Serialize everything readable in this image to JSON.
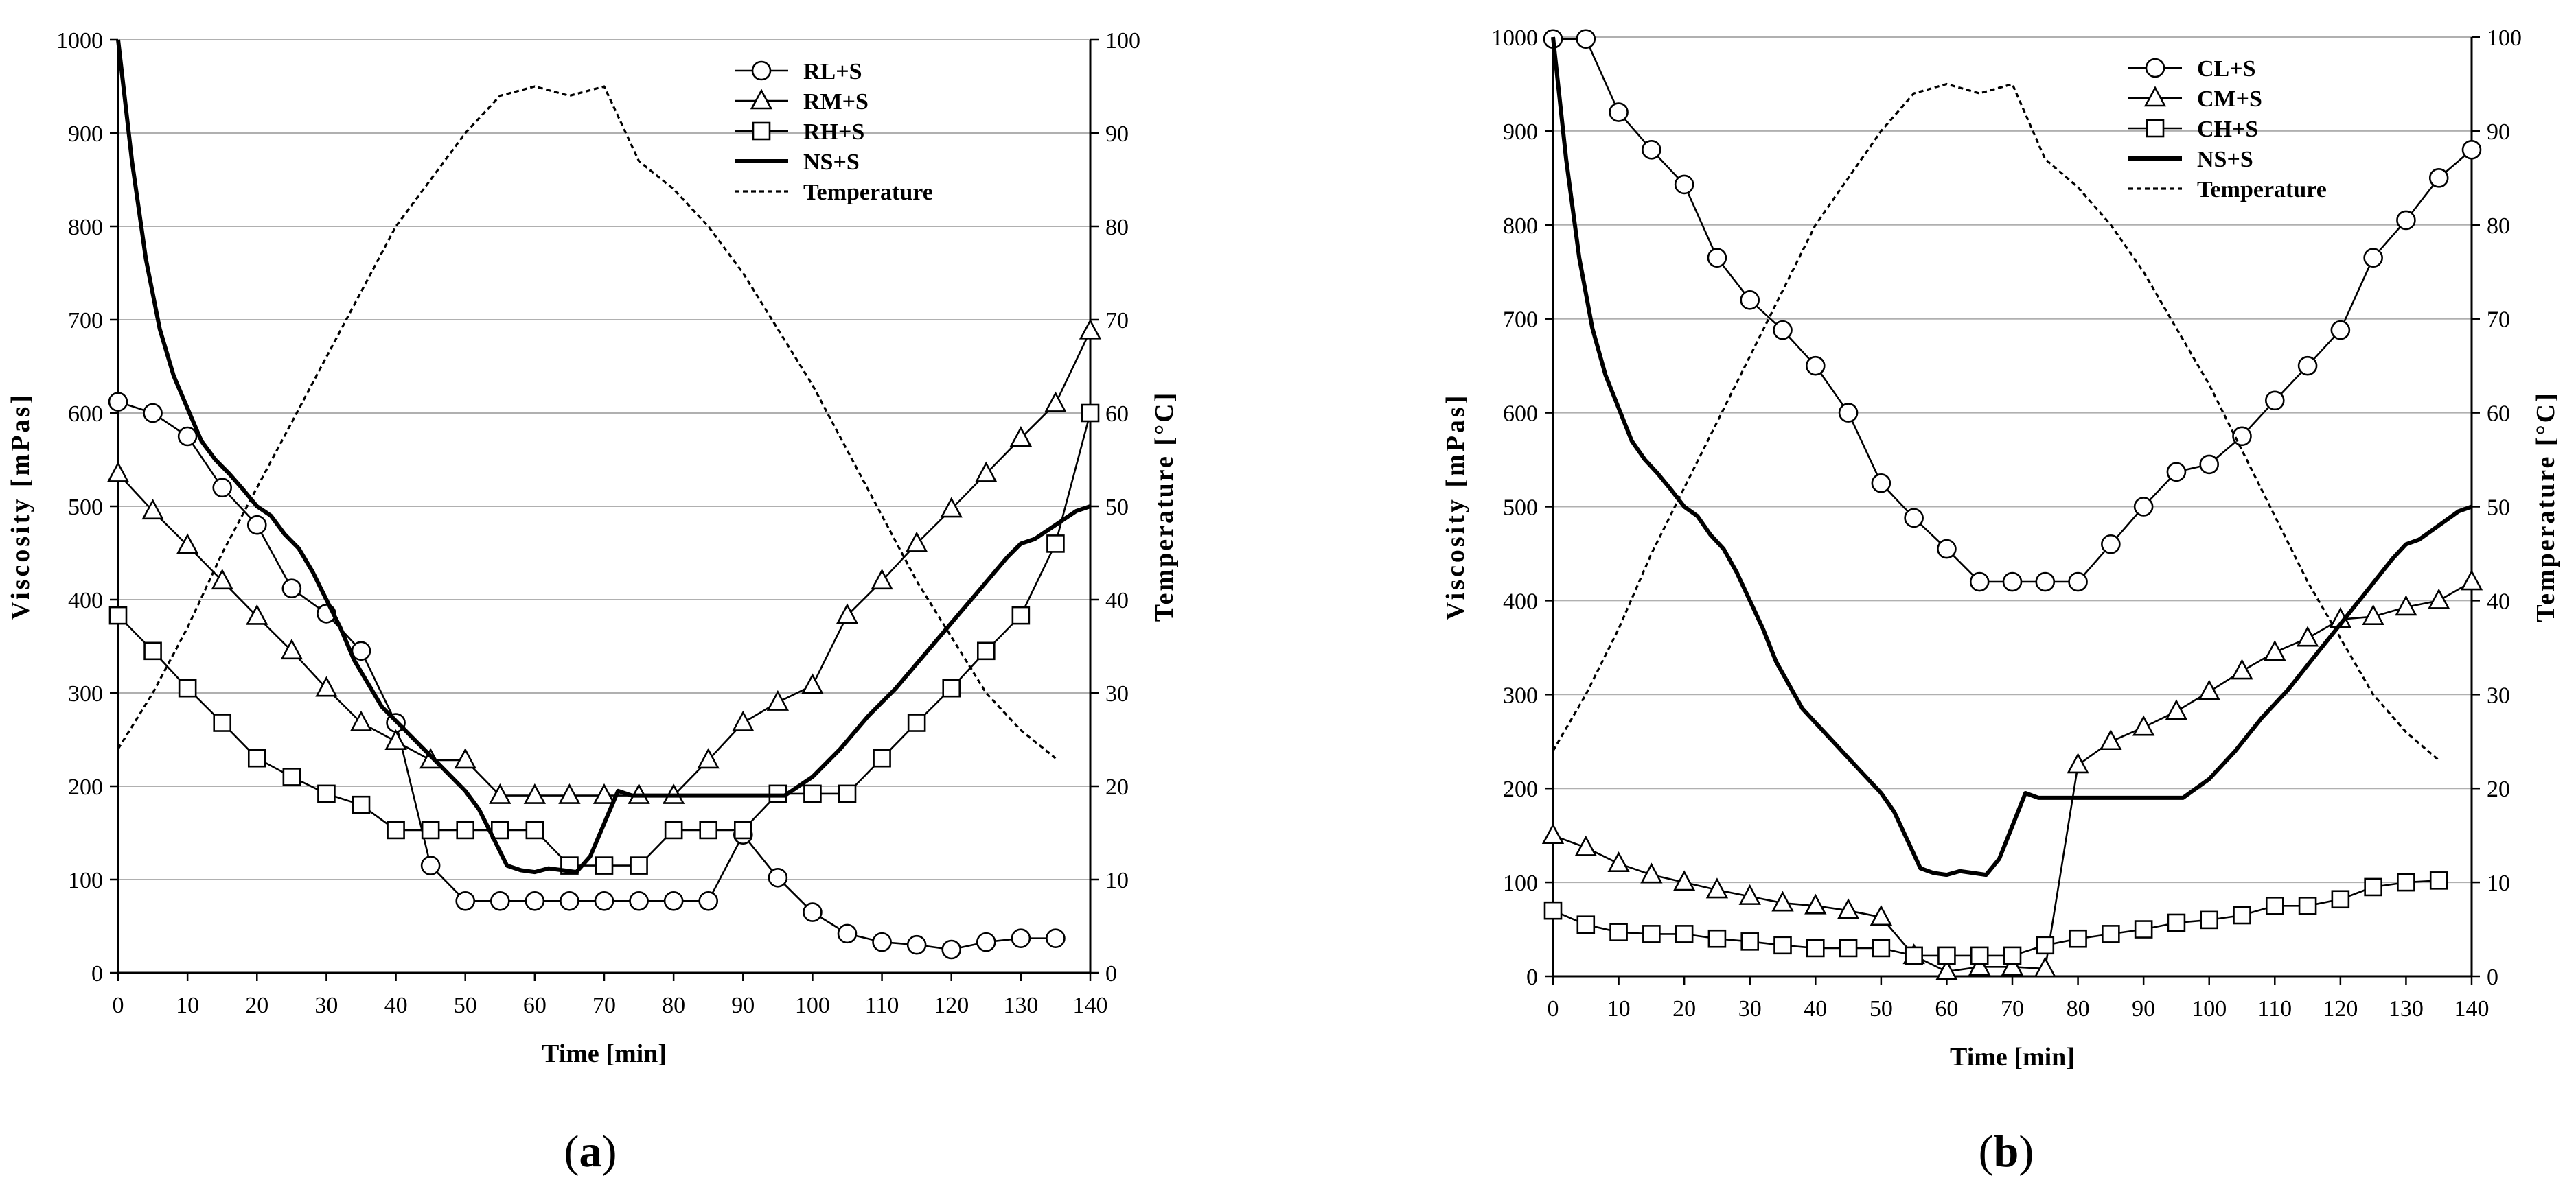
{
  "chart_data": [
    {
      "type": "line",
      "panel_label": "a",
      "xlabel": "Time [min]",
      "ylabel": "Viscosity  [mPas]",
      "y2label": "Temperature [°C]",
      "xlim": [
        0,
        140
      ],
      "ylim": [
        0,
        1000
      ],
      "y2lim": [
        0,
        100
      ],
      "x_ticks": [
        0,
        10,
        20,
        30,
        40,
        50,
        60,
        70,
        80,
        90,
        100,
        110,
        120,
        130,
        140
      ],
      "y_ticks": [
        0,
        100,
        200,
        300,
        400,
        500,
        600,
        700,
        800,
        900,
        1000
      ],
      "y2_ticks": [
        0,
        10,
        20,
        30,
        40,
        50,
        60,
        70,
        80,
        90,
        100
      ],
      "grid": true,
      "legend": "top-right",
      "series": [
        {
          "name": "RL+S",
          "marker": "circle",
          "x": [
            0,
            5,
            10,
            15,
            20,
            25,
            30,
            35,
            40,
            45,
            50,
            55,
            60,
            65,
            70,
            75,
            80,
            85,
            90,
            95,
            100,
            105,
            110,
            115,
            120,
            125,
            130,
            135
          ],
          "values": [
            612,
            600,
            575,
            520,
            480,
            412,
            385,
            345,
            268,
            115,
            77,
            77,
            77,
            77,
            77,
            77,
            77,
            77,
            148,
            102,
            65,
            42,
            33,
            30,
            25,
            33,
            37,
            37
          ]
        },
        {
          "name": "RM+S",
          "marker": "triangle",
          "x": [
            0,
            5,
            10,
            15,
            20,
            25,
            30,
            35,
            40,
            45,
            50,
            55,
            60,
            65,
            70,
            75,
            80,
            85,
            90,
            95,
            100,
            105,
            110,
            115,
            120,
            125,
            130,
            135,
            140
          ],
          "values": [
            535,
            495,
            458,
            420,
            382,
            345,
            305,
            268,
            248,
            228,
            228,
            190,
            190,
            190,
            190,
            190,
            190,
            228,
            268,
            290,
            308,
            383,
            420,
            460,
            497,
            535,
            573,
            610,
            688
          ]
        },
        {
          "name": "RH+S",
          "marker": "square",
          "x": [
            0,
            5,
            10,
            15,
            20,
            25,
            30,
            35,
            40,
            45,
            50,
            55,
            60,
            65,
            70,
            75,
            80,
            85,
            90,
            95,
            100,
            105,
            110,
            115,
            120,
            125,
            130,
            135,
            140
          ],
          "values": [
            383,
            345,
            305,
            268,
            230,
            210,
            192,
            180,
            153,
            153,
            153,
            153,
            153,
            115,
            115,
            115,
            153,
            153,
            153,
            192,
            192,
            192,
            230,
            268,
            305,
            345,
            383,
            460,
            600
          ]
        },
        {
          "name": "NS+S",
          "marker": "none",
          "x": [
            0,
            2,
            4,
            6,
            8,
            10,
            12,
            14,
            16,
            18,
            20,
            22,
            24,
            26,
            28,
            30,
            32,
            34,
            36,
            38,
            40,
            42,
            44,
            46,
            48,
            50,
            52,
            54,
            56,
            58,
            60,
            62,
            64,
            66,
            68,
            70,
            72,
            74,
            76,
            78,
            80,
            84,
            88,
            92,
            96,
            100,
            104,
            108,
            112,
            116,
            120,
            124,
            128,
            130,
            132,
            134,
            136,
            138,
            140
          ],
          "values": [
            1000,
            870,
            765,
            690,
            640,
            605,
            570,
            550,
            535,
            518,
            500,
            490,
            470,
            455,
            430,
            400,
            370,
            335,
            310,
            285,
            270,
            255,
            240,
            225,
            210,
            195,
            175,
            145,
            115,
            110,
            108,
            112,
            110,
            108,
            125,
            160,
            195,
            190,
            190,
            190,
            190,
            190,
            190,
            190,
            190,
            210,
            240,
            275,
            305,
            340,
            375,
            410,
            445,
            460,
            465,
            475,
            485,
            495,
            500
          ]
        },
        {
          "name": "Temperature",
          "axis": "right",
          "style": "dotted",
          "x": [
            0,
            5,
            10,
            15,
            20,
            25,
            30,
            35,
            40,
            45,
            50,
            55,
            60,
            65,
            70,
            75,
            80,
            85,
            90,
            95,
            100,
            105,
            110,
            115,
            120,
            125,
            130,
            135
          ],
          "values": [
            24,
            30,
            37,
            45,
            52,
            59,
            66,
            73,
            80,
            85,
            90,
            94,
            95,
            94,
            95,
            87,
            84,
            80,
            75,
            69,
            63,
            56,
            49,
            42,
            36,
            30,
            26,
            23
          ]
        }
      ]
    },
    {
      "type": "line",
      "panel_label": "b",
      "xlabel": "Time [min]",
      "ylabel": "Viscosity  [mPas]",
      "y2label": "Temperature [°C]",
      "xlim": [
        0,
        140
      ],
      "ylim": [
        0,
        1000
      ],
      "y2lim": [
        0,
        100
      ],
      "x_ticks": [
        0,
        10,
        20,
        30,
        40,
        50,
        60,
        70,
        80,
        90,
        100,
        110,
        120,
        130,
        140
      ],
      "y_ticks": [
        0,
        100,
        200,
        300,
        400,
        500,
        600,
        700,
        800,
        900,
        1000
      ],
      "y2_ticks": [
        0,
        10,
        20,
        30,
        40,
        50,
        60,
        70,
        80,
        90,
        100
      ],
      "grid": true,
      "legend": "top-right",
      "series": [
        {
          "name": "CL+S",
          "marker": "circle",
          "x": [
            0,
            5,
            10,
            15,
            20,
            25,
            30,
            35,
            40,
            45,
            50,
            55,
            60,
            65,
            70,
            75,
            80,
            85,
            90,
            95,
            100,
            105,
            110,
            115,
            120,
            125,
            130,
            135,
            140
          ],
          "values": [
            998,
            998,
            920,
            880,
            843,
            765,
            720,
            688,
            650,
            600,
            525,
            488,
            455,
            420,
            420,
            420,
            420,
            460,
            500,
            537,
            545,
            575,
            613,
            650,
            688,
            765,
            805,
            850,
            880
          ]
        },
        {
          "name": "CM+S",
          "marker": "triangle",
          "x": [
            0,
            5,
            10,
            15,
            20,
            25,
            30,
            35,
            40,
            45,
            50,
            55,
            60,
            65,
            70,
            75,
            80,
            85,
            90,
            95,
            100,
            105,
            110,
            115,
            120,
            125,
            130,
            135,
            140
          ],
          "values": [
            150,
            137,
            120,
            108,
            100,
            92,
            85,
            78,
            75,
            70,
            63,
            22,
            5,
            10,
            10,
            8,
            225,
            250,
            265,
            282,
            303,
            325,
            345,
            360,
            380,
            383,
            393,
            400,
            420
          ]
        },
        {
          "name": "CH+S",
          "marker": "square",
          "x": [
            0,
            5,
            10,
            15,
            20,
            25,
            30,
            35,
            40,
            45,
            50,
            55,
            60,
            65,
            70,
            75,
            80,
            85,
            90,
            95,
            100,
            105,
            110,
            115,
            120,
            125,
            130,
            135
          ],
          "values": [
            70,
            55,
            47,
            45,
            45,
            40,
            37,
            33,
            30,
            30,
            30,
            22,
            22,
            22,
            22,
            33,
            40,
            45,
            50,
            57,
            60,
            65,
            75,
            75,
            82,
            95,
            100,
            102
          ]
        },
        {
          "name": "NS+S",
          "marker": "none",
          "x": [
            0,
            2,
            4,
            6,
            8,
            10,
            12,
            14,
            16,
            18,
            20,
            22,
            24,
            26,
            28,
            30,
            32,
            34,
            36,
            38,
            40,
            42,
            44,
            46,
            48,
            50,
            52,
            54,
            56,
            58,
            60,
            62,
            64,
            66,
            68,
            70,
            72,
            74,
            76,
            78,
            80,
            84,
            88,
            92,
            96,
            100,
            104,
            108,
            112,
            116,
            120,
            124,
            128,
            130,
            132,
            134,
            136,
            138,
            140
          ],
          "values": [
            1000,
            870,
            765,
            690,
            640,
            605,
            570,
            550,
            535,
            518,
            500,
            490,
            470,
            455,
            430,
            400,
            370,
            335,
            310,
            285,
            270,
            255,
            240,
            225,
            210,
            195,
            175,
            145,
            115,
            110,
            108,
            112,
            110,
            108,
            125,
            160,
            195,
            190,
            190,
            190,
            190,
            190,
            190,
            190,
            190,
            210,
            240,
            275,
            305,
            340,
            375,
            410,
            445,
            460,
            465,
            475,
            485,
            495,
            500
          ]
        },
        {
          "name": "Temperature",
          "axis": "right",
          "style": "dotted",
          "x": [
            0,
            5,
            10,
            15,
            20,
            25,
            30,
            35,
            40,
            45,
            50,
            55,
            60,
            65,
            70,
            75,
            80,
            85,
            90,
            95,
            100,
            105,
            110,
            115,
            120,
            125,
            130,
            135
          ],
          "values": [
            24,
            30,
            37,
            45,
            52,
            59,
            66,
            73,
            80,
            85,
            90,
            94,
            95,
            94,
            95,
            87,
            84,
            80,
            75,
            69,
            63,
            56,
            49,
            42,
            36,
            30,
            26,
            23
          ]
        }
      ]
    }
  ]
}
